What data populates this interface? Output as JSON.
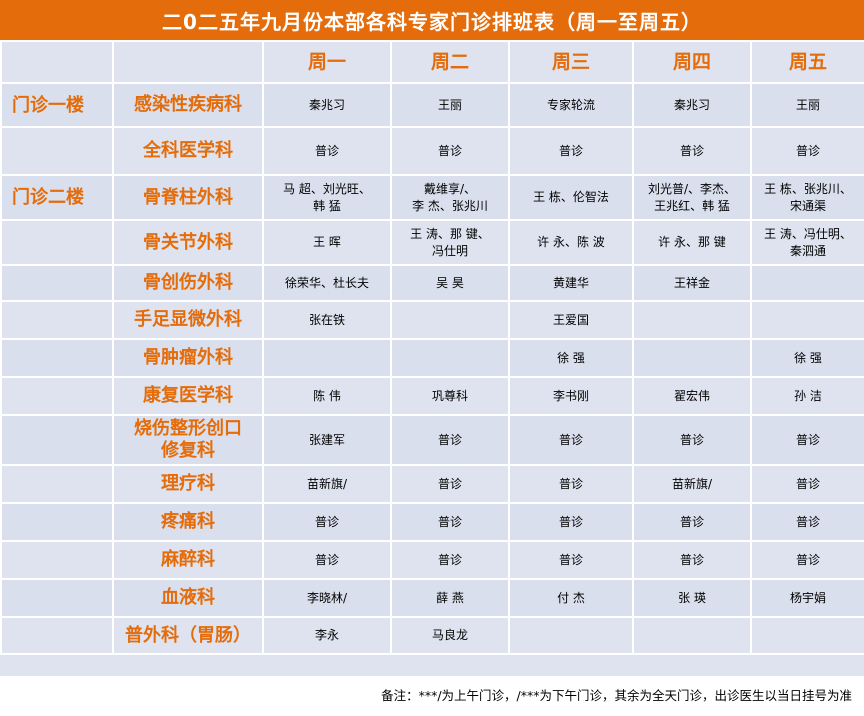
{
  "title": "二0二五年九月份本部各科专家门诊排班表（周一至周五）",
  "days": [
    "周一",
    "周二",
    "周三",
    "周四",
    "周五"
  ],
  "rows": [
    {
      "floor": "门诊一楼",
      "dept": "感染性疾病科",
      "cells": [
        "秦兆习",
        "王丽",
        "专家轮流",
        "秦兆习",
        "王丽"
      ]
    },
    {
      "floor": "",
      "dept": "全科医学科",
      "cells": [
        "普诊",
        "普诊",
        "普诊",
        "普诊",
        "普诊"
      ]
    },
    {
      "floor": "门诊二楼",
      "dept": "骨脊柱外科",
      "cells": [
        "马  超、刘光旺、\n韩  猛",
        "戴维享/、\n李  杰、张兆川",
        "王  栋、伦智法",
        "刘光普/、李杰、\n王兆红、韩  猛",
        "王  栋、张兆川、\n宋通渠"
      ]
    },
    {
      "floor": "",
      "dept": "骨关节外科",
      "cells": [
        "王  晖",
        "王  涛、那  键、\n冯仕明",
        "许  永、陈  波",
        "许  永、那  键",
        "王  涛、冯仕明、\n秦泗通"
      ]
    },
    {
      "floor": "",
      "dept": "骨创伤外科",
      "cells": [
        "徐荣华、杜长夫",
        "吴  昊",
        "黄建华",
        "王祥金",
        ""
      ]
    },
    {
      "floor": "",
      "dept": "手足显微外科",
      "cells": [
        "张在铁",
        "",
        "王爱国",
        "",
        ""
      ]
    },
    {
      "floor": "",
      "dept": "骨肿瘤外科",
      "cells": [
        "",
        "",
        "徐  强",
        "",
        "徐  强"
      ]
    },
    {
      "floor": "",
      "dept": "康复医学科",
      "cells": [
        "陈  伟",
        "巩尊科",
        "李书刚",
        "翟宏伟",
        "孙  洁"
      ]
    },
    {
      "floor": "",
      "dept": "烧伤整形创口\n修复科",
      "cells": [
        "张建军",
        "普诊",
        "普诊",
        "普诊",
        "普诊"
      ]
    },
    {
      "floor": "",
      "dept": "理疗科",
      "cells": [
        "苗新旗/",
        "普诊",
        "普诊",
        "苗新旗/",
        "普诊"
      ]
    },
    {
      "floor": "",
      "dept": "疼痛科",
      "cells": [
        "普诊",
        "普诊",
        "普诊",
        "普诊",
        "普诊"
      ]
    },
    {
      "floor": "",
      "dept": "麻醉科",
      "cells": [
        "普诊",
        "普诊",
        "普诊",
        "普诊",
        "普诊"
      ]
    },
    {
      "floor": "",
      "dept": "血液科",
      "cells": [
        "李晓林/",
        "薛    燕",
        "付    杰",
        "张    瑛",
        "杨宇娟"
      ]
    },
    {
      "floor": "",
      "dept": "普外科（胃肠）",
      "cells": [
        "李永",
        "马良龙",
        "",
        "",
        ""
      ]
    }
  ],
  "footer_note": "备注：***/为上午门诊，/***为下午门诊，其余为全天门诊，出诊医生以当日挂号为准",
  "colors": {
    "accent": "#e46c0a",
    "row_bg": "#dee3ef",
    "row_alt_bg": "#d9dfec"
  }
}
